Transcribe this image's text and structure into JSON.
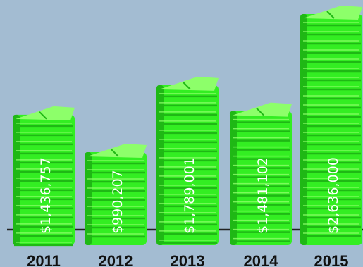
{
  "chart_data": {
    "type": "bar",
    "categories": [
      "2011",
      "2012",
      "2013",
      "2014",
      "2015"
    ],
    "values": [
      1436757,
      990207,
      1789001,
      1481102,
      2636000
    ],
    "value_labels": [
      "$1,436,757",
      "$990,207",
      "$1,789,001",
      "$1,481,102",
      "$2,636,000"
    ],
    "title": "",
    "xlabel": "",
    "ylabel": "",
    "ylim": [
      0,
      2636000
    ],
    "grid": false,
    "legend": "none"
  },
  "colors": {
    "background": "#a3bcd2",
    "bar": "#33ee22",
    "bar_dark": "#1fb815",
    "bar_light": "#8dff6a",
    "axis": "#222222"
  }
}
